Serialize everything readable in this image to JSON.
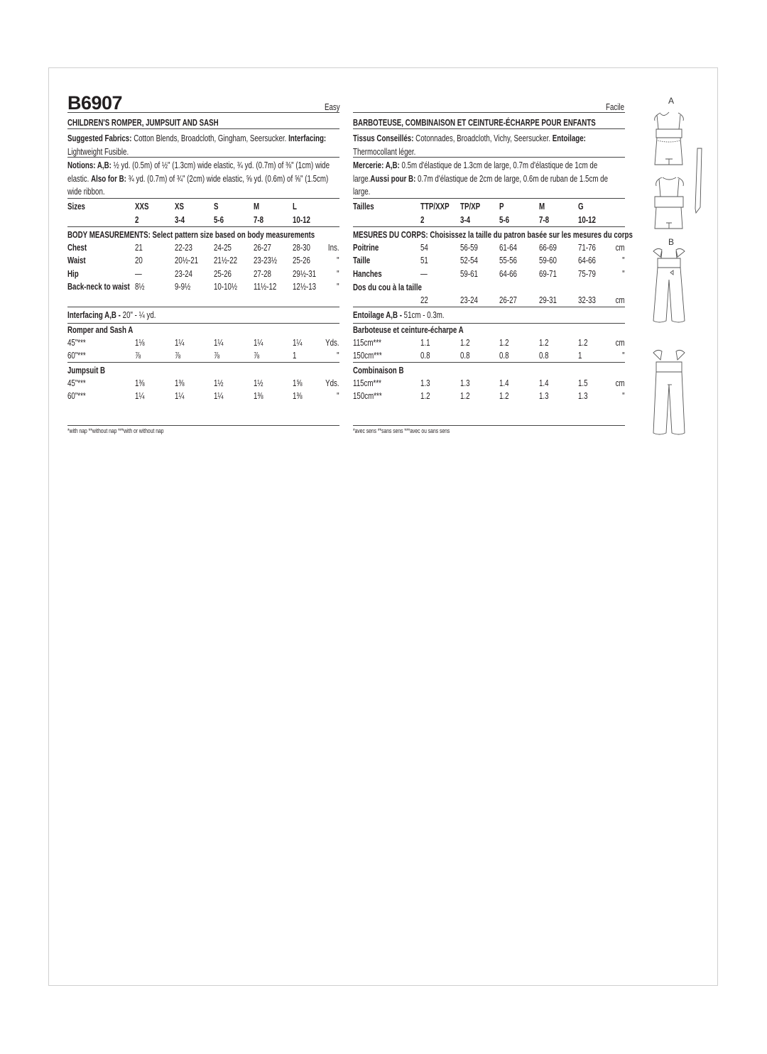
{
  "left": {
    "code": "B6907",
    "difficulty": "Easy",
    "title": "CHILDREN'S ROMPER, JUMPSUIT AND SASH",
    "fabrics": [
      {
        "bold": "Suggested Fabrics: ",
        "text": "Cotton Blends, Broadcloth, Gingham, Seersucker. "
      },
      {
        "bold": "Interfacing: ",
        "text": "Lightweight Fusible."
      }
    ],
    "notions": [
      {
        "bold": "Notions: A,B: ",
        "text": "½ yd. (0.5m) of ½\" (1.3cm) wide elastic, ¾ yd. (0.7m) of ⅜\" (1cm) wide elastic. "
      },
      {
        "bold": "Also for B: ",
        "text": "¾ yd. (0.7m) of ¾\" (2cm) wide elastic, ⅝ yd. (0.6m) of ⅝\" (1.5cm) wide ribbon."
      }
    ],
    "sizes_label": "Sizes",
    "sizes": [
      "XXS",
      "XS",
      "S",
      "M",
      "L"
    ],
    "size_numbers": [
      "2",
      "3-4",
      "5-6",
      "7-8",
      "10-12"
    ],
    "body_header": "BODY MEASUREMENTS: Select pattern size based on body measurements",
    "body_rows": [
      {
        "label": "Chest",
        "values": [
          "21",
          "22-23",
          "24-25",
          "26-27",
          "28-30"
        ],
        "unit": "Ins."
      },
      {
        "label": "Waist",
        "values": [
          "20",
          "20½-21",
          "21½-22",
          "23-23½",
          "25-26"
        ],
        "unit": "\""
      },
      {
        "label": "Hip",
        "values": [
          "—",
          "23-24",
          "25-26",
          "27-28",
          "29½-31"
        ],
        "unit": "\""
      },
      {
        "label": "Back-neck to waist",
        "values": [
          "8½",
          "9-9½",
          "10-10½",
          "11½-12",
          "12½-13"
        ],
        "unit": "\""
      }
    ],
    "interfacing": {
      "bold": "Interfacing A,B - ",
      "text": "20\" - ¼ yd."
    },
    "view_a": {
      "title": "Romper and Sash A",
      "rows": [
        {
          "label": "45\"***",
          "values": [
            "1⅛",
            "1¼",
            "1¼",
            "1¼",
            "1¼"
          ],
          "unit": "Yds."
        },
        {
          "label": "60\"***",
          "values": [
            "⅞",
            "⅞",
            "⅞",
            "⅞",
            "1"
          ],
          "unit": "\""
        }
      ]
    },
    "view_b": {
      "title": "Jumpsuit B",
      "rows": [
        {
          "label": "45\"***",
          "values": [
            "1⅜",
            "1⅜",
            "1½",
            "1½",
            "1⅝"
          ],
          "unit": "Yds."
        },
        {
          "label": "60\"***",
          "values": [
            "1¼",
            "1¼",
            "1¼",
            "1⅜",
            "1⅜"
          ],
          "unit": "\""
        }
      ]
    },
    "footnote": "*with nap   **without nap   ***with or without nap"
  },
  "right": {
    "difficulty": "Facile",
    "title": "BARBOTEUSE, COMBINAISON ET CEINTURE-ÉCHARPE POUR ENFANTS",
    "fabrics": [
      {
        "bold": "Tissus Conseillés: ",
        "text": "Cotonnades, Broadcloth, Vichy, Seersucker. "
      },
      {
        "bold": "Entoilage: ",
        "text": "Thermocollant léger."
      }
    ],
    "notions": [
      {
        "bold": "Mercerie: A,B: ",
        "text": "0.5m d'élastique de 1.3cm de large, 0.7m d'élastique de 1cm de large."
      },
      {
        "bold": "Aussi pour B: ",
        "text": "0.7m d'élastique de 2cm de large, 0.6m de ruban de 1.5cm de large."
      }
    ],
    "sizes_label": "Tailles",
    "sizes": [
      "TTP/XXP",
      "TP/XP",
      "P",
      "M",
      "G"
    ],
    "size_numbers": [
      "2",
      "3-4",
      "5-6",
      "7-8",
      "10-12"
    ],
    "body_header": "MESURES DU CORPS: Choisissez la taille du patron basée sur les mesures du corps",
    "body_rows": [
      {
        "label": "Poitrine",
        "values": [
          "54",
          "56-59",
          "61-64",
          "66-69",
          "71-76"
        ],
        "unit": "cm"
      },
      {
        "label": "Taille",
        "values": [
          "51",
          "52-54",
          "55-56",
          "59-60",
          "64-66"
        ],
        "unit": "\""
      },
      {
        "label": "Hanches",
        "values": [
          "—",
          "59-61",
          "64-66",
          "69-71",
          "75-79"
        ],
        "unit": "\""
      },
      {
        "label": "Dos du cou à la taille",
        "values": [
          "22",
          "23-24",
          "26-27",
          "29-31",
          "32-33"
        ],
        "unit": "cm"
      }
    ],
    "interfacing": {
      "bold": "Entoilage A,B - ",
      "text": "51cm - 0.3m."
    },
    "view_a": {
      "title": "Barboteuse et ceinture-écharpe A",
      "rows": [
        {
          "label": "115cm***",
          "values": [
            "1.1",
            "1.2",
            "1.2",
            "1.2",
            "1.2"
          ],
          "unit": "cm"
        },
        {
          "label": "150cm***",
          "values": [
            "0.8",
            "0.8",
            "0.8",
            "0.8",
            "1"
          ],
          "unit": "\""
        }
      ]
    },
    "view_b": {
      "title": "Combinaison B",
      "rows": [
        {
          "label": "115cm***",
          "values": [
            "1.3",
            "1.3",
            "1.4",
            "1.4",
            "1.5"
          ],
          "unit": "cm"
        },
        {
          "label": "150cm***",
          "values": [
            "1.2",
            "1.2",
            "1.2",
            "1.3",
            "1.3"
          ],
          "unit": "\""
        }
      ]
    },
    "footnote": "*avec sens   **sans sens   ***avec ou sans sens"
  },
  "illustrations": {
    "view_a_label": "A",
    "view_b_label": "B"
  }
}
